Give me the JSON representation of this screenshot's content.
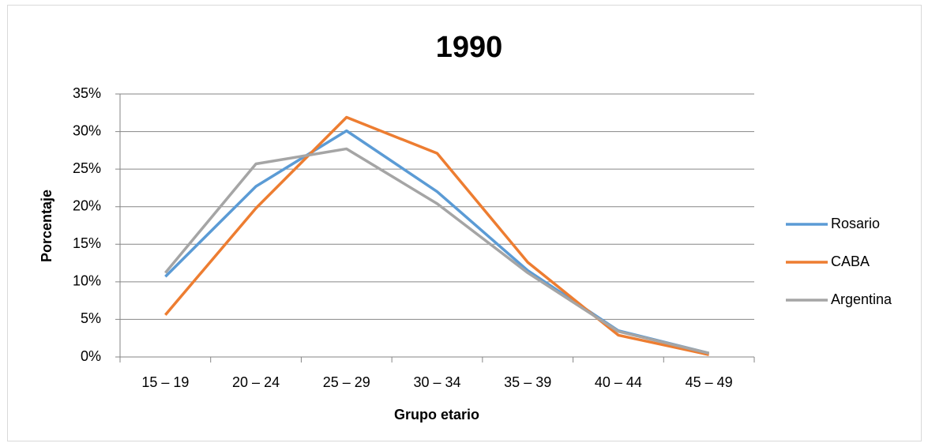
{
  "chart_data": {
    "type": "line",
    "title": "1990",
    "x_label": "Grupo etario",
    "y_label": "Porcentaje",
    "categories": [
      "15 – 19",
      "20 – 24",
      "25 – 29",
      "30 – 34",
      "35 – 39",
      "40 – 44",
      "45 – 49"
    ],
    "series": [
      {
        "name": "Rosario",
        "color": "#5b9bd5",
        "values": [
          10.7,
          22.7,
          30.1,
          22.0,
          11.5,
          3.5,
          0.5
        ]
      },
      {
        "name": "CABA",
        "color": "#ed7d31",
        "values": [
          5.6,
          19.8,
          31.9,
          27.1,
          12.6,
          2.9,
          0.3
        ]
      },
      {
        "name": "Argentina",
        "color": "#a5a5a5",
        "values": [
          11.2,
          25.7,
          27.7,
          20.4,
          11.2,
          3.4,
          0.5
        ]
      }
    ],
    "ylim": [
      0,
      35
    ],
    "yticks": [
      {
        "value": 0,
        "label": "0%"
      },
      {
        "value": 5,
        "label": "5%"
      },
      {
        "value": 10,
        "label": "10%"
      },
      {
        "value": 15,
        "label": "15%"
      },
      {
        "value": 20,
        "label": "20%"
      },
      {
        "value": 25,
        "label": "25%"
      },
      {
        "value": 30,
        "label": "30%"
      },
      {
        "value": 35,
        "label": "35%"
      }
    ],
    "grid": true,
    "legend": "right"
  }
}
